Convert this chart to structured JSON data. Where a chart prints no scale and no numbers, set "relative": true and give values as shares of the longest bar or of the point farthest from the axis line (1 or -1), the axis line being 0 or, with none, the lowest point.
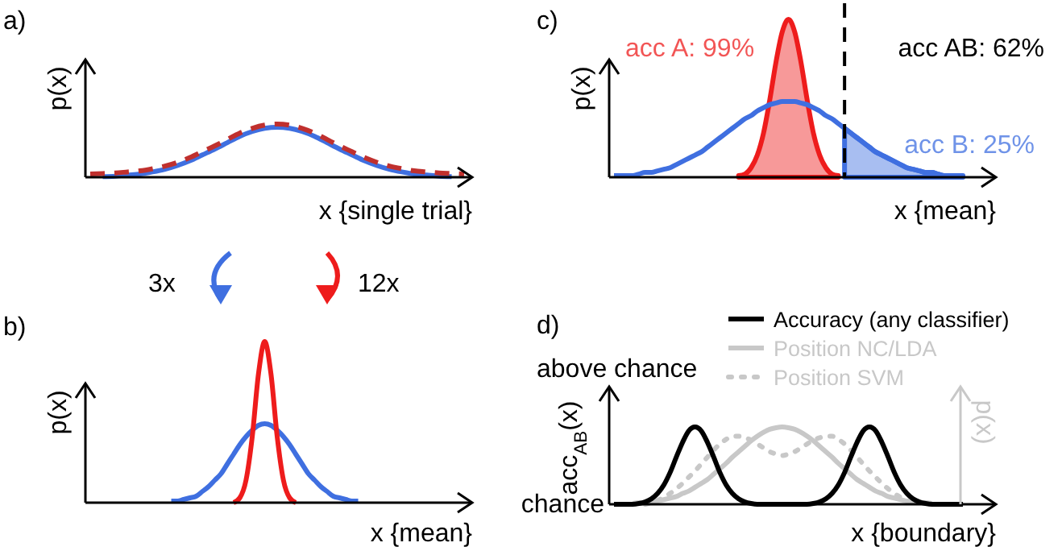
{
  "chart_data": [
    {
      "type": "line",
      "title": "a)",
      "xlabel": "x {single trial}",
      "ylabel": "p(x)",
      "relative": true,
      "categories": [
        null,
        null,
        null,
        null,
        null,
        null,
        null,
        null,
        null,
        null,
        null,
        null,
        null,
        null,
        null,
        null,
        null,
        null,
        null,
        null,
        null,
        null,
        null,
        null,
        null,
        null,
        null,
        null,
        null,
        null,
        null
      ],
      "series": [
        {
          "color": "#3f6fe0",
          "values": [
            null,
            0.01,
            0.02,
            0.04,
            0.06,
            0.1,
            0.15,
            0.22,
            0.31,
            0.42,
            0.53,
            0.65,
            0.77,
            0.86,
            0.92,
            0.94,
            0.92,
            0.86,
            0.77,
            0.65,
            0.53,
            0.42,
            0.31,
            0.22,
            0.15,
            0.1,
            0.06,
            0.04,
            0.02,
            0.01,
            null
          ]
        },
        {
          "color": "#c0302e",
          "line_style": "dashed",
          "values": [
            0.06,
            0.07,
            0.08,
            0.1,
            0.12,
            0.16,
            0.21,
            0.28,
            0.37,
            0.48,
            0.59,
            0.71,
            0.83,
            0.92,
            0.98,
            1,
            0.98,
            0.92,
            0.83,
            0.71,
            0.59,
            0.48,
            0.37,
            0.28,
            0.21,
            0.16,
            0.12,
            0.1,
            0.08,
            0.07,
            0.06
          ]
        }
      ]
    },
    {
      "type": "line",
      "title": "b)",
      "xlabel": "x {mean}",
      "ylabel": "p(x)",
      "relative": true,
      "annotations": [
        "3x",
        "12x"
      ],
      "categories": [
        null,
        null,
        null,
        null,
        null,
        null,
        null,
        null,
        null,
        null,
        null,
        null,
        null,
        null,
        null,
        null,
        null,
        null,
        null,
        null,
        null,
        null,
        null,
        null,
        null,
        null,
        null,
        null,
        null,
        null,
        null,
        null,
        null,
        null,
        null,
        null,
        null,
        null,
        null,
        null,
        null,
        null,
        null,
        null,
        null,
        null,
        null,
        null,
        null,
        null,
        null,
        null,
        null,
        null,
        null,
        null,
        null,
        null,
        null,
        null,
        null
      ],
      "series": [
        {
          "color": "#3f6fe0",
          "values": [
            null,
            null,
            null,
            null,
            null,
            null,
            null,
            null,
            null,
            null,
            null,
            null,
            null,
            0.01,
            0.01,
            0.02,
            0.03,
            0.04,
            0.07,
            0.1,
            0.14,
            0.18,
            0.24,
            0.3,
            0.36,
            0.41,
            0.45,
            0.48,
            0.49,
            0.48,
            0.45,
            0.41,
            0.36,
            0.3,
            0.24,
            0.18,
            0.14,
            0.1,
            0.07,
            0.04,
            0.03,
            0.02,
            0.01,
            0.01,
            null,
            null,
            null,
            null,
            null,
            null,
            null,
            null,
            null,
            null,
            null,
            null,
            null,
            null,
            null,
            null,
            null
          ]
        },
        {
          "color": "#ee1c1c",
          "values": [
            null,
            null,
            null,
            null,
            null,
            null,
            null,
            null,
            null,
            null,
            null,
            null,
            null,
            null,
            null,
            null,
            null,
            null,
            null,
            null,
            null,
            null,
            null,
            0,
            0.03,
            0.14,
            0.41,
            0.8,
            1,
            0.8,
            0.41,
            0.14,
            0.03,
            0,
            null,
            null,
            null,
            null,
            null,
            null,
            null,
            null,
            null,
            null,
            null,
            null,
            null,
            null,
            null,
            null,
            null,
            null,
            null,
            null,
            null,
            null,
            null,
            null,
            null,
            null,
            null
          ]
        }
      ]
    },
    {
      "type": "line",
      "title": "c)",
      "xlabel": "x {mean}",
      "ylabel": "p(x)",
      "relative": true,
      "annotations": [
        "acc A: 99%",
        "acc AB: 62%",
        "acc B: 25%"
      ],
      "categories": [
        null,
        null,
        null,
        null,
        null,
        null,
        null,
        null,
        null,
        null,
        null,
        null,
        null,
        null,
        null,
        null,
        null,
        null,
        null,
        null,
        null,
        null,
        null,
        null,
        null,
        null,
        null,
        null,
        null,
        null,
        null,
        null,
        null,
        null,
        null,
        null,
        null,
        null,
        null,
        null,
        null,
        null,
        null,
        null,
        null,
        null,
        null,
        null,
        null,
        null,
        null,
        null,
        null,
        null,
        null,
        null,
        null,
        null,
        null,
        null,
        null
      ],
      "series": [
        {
          "type": "area",
          "color": "#ee1c1c",
          "values": [
            null,
            null,
            null,
            null,
            null,
            null,
            null,
            null,
            null,
            null,
            null,
            null,
            null,
            null,
            null,
            null,
            null,
            null,
            null,
            null,
            0.01,
            0.02,
            0.06,
            0.14,
            0.28,
            0.49,
            0.73,
            0.92,
            1,
            0.92,
            0.73,
            0.49,
            0.28,
            0.14,
            0.06,
            0.02,
            0.01,
            null,
            null,
            null,
            null,
            null,
            null,
            null,
            null,
            null,
            null,
            null,
            null,
            null,
            null,
            null,
            null,
            null,
            null,
            null,
            null,
            null,
            null,
            null,
            null
          ]
        },
        {
          "type": "area",
          "color": "#3f6fe0",
          "values": [
            null,
            null,
            null,
            null,
            null,
            null,
            null,
            null,
            null,
            null,
            null,
            null,
            null,
            null,
            null,
            null,
            null,
            null,
            null,
            null,
            null,
            null,
            null,
            null,
            null,
            null,
            null,
            null,
            null,
            null,
            null,
            null,
            null,
            null,
            null,
            null,
            null,
            0.31,
            0.28,
            0.25,
            0.22,
            0.19,
            0.16,
            0.14,
            0.12,
            0.1,
            0.08,
            0.06,
            0.05,
            0.04,
            0.03,
            0.03,
            0.02,
            0.01,
            0.01,
            0.01,
            0.01,
            null,
            null,
            null,
            null
          ]
        },
        {
          "color": "#3f6fe0",
          "values": [
            0.01,
            0.01,
            0.01,
            0.01,
            0.02,
            0.03,
            0.03,
            0.04,
            0.05,
            0.06,
            0.08,
            0.1,
            0.12,
            0.14,
            0.16,
            0.19,
            0.22,
            0.25,
            0.28,
            0.31,
            0.34,
            0.37,
            0.39,
            0.42,
            0.44,
            0.46,
            0.47,
            0.48,
            0.48,
            0.48,
            0.47,
            0.46,
            0.44,
            0.42,
            0.39,
            0.37,
            0.34,
            0.31,
            0.28,
            0.25,
            0.22,
            0.19,
            0.16,
            0.14,
            0.12,
            0.1,
            0.08,
            0.06,
            0.05,
            0.04,
            0.03,
            0.03,
            0.02,
            0.01,
            0.01,
            0.01,
            0.01,
            null,
            null,
            null,
            null
          ]
        }
      ]
    },
    {
      "type": "line",
      "title": "d)",
      "xlabel": "x {boundary}",
      "ylabel": "acc$_{AB}$(x)",
      "y2label": "p(x)",
      "relative": true,
      "legend": "top right",
      "annotations": [
        "above chance",
        "chance"
      ],
      "categories": [
        null,
        null,
        null,
        null,
        null,
        null,
        null,
        null,
        null,
        null,
        null,
        null,
        null,
        null,
        null,
        null,
        null,
        null,
        null,
        null,
        null,
        null,
        null,
        null,
        null,
        null,
        null,
        null,
        null,
        null,
        null,
        null,
        null,
        null,
        null,
        null,
        null,
        null,
        null,
        null,
        null,
        null,
        null,
        null,
        null,
        null,
        null,
        null,
        null,
        null,
        null,
        null,
        null,
        null,
        null,
        null,
        null,
        null,
        null,
        null,
        null
      ],
      "series": [
        {
          "name": "Accuracy (any classifier)",
          "color": "#000000",
          "values": [
            0,
            0,
            0,
            0,
            0.01,
            0.03,
            0.07,
            0.14,
            0.25,
            0.41,
            0.61,
            0.8,
            0.95,
            1,
            0.95,
            0.8,
            0.61,
            0.41,
            0.25,
            0.14,
            0.07,
            0.03,
            0.01,
            0,
            0,
            0,
            0,
            0,
            0,
            0,
            0,
            0,
            0.01,
            0.03,
            0.07,
            0.14,
            0.25,
            0.41,
            0.61,
            0.8,
            0.95,
            1,
            0.95,
            0.8,
            0.61,
            0.41,
            0.25,
            0.14,
            0.07,
            0.03,
            0.01,
            0,
            0,
            0,
            0,
            0,
            0,
            null,
            null,
            null,
            null
          ]
        },
        {
          "name": "Position NC/LDA",
          "color": "#c8c8c8",
          "values": [
            null,
            null,
            null,
            0.01,
            0.02,
            0.02,
            0.03,
            0.04,
            0.06,
            0.08,
            0.1,
            0.14,
            0.17,
            0.22,
            0.27,
            0.32,
            0.39,
            0.46,
            0.53,
            0.61,
            0.68,
            0.75,
            0.82,
            0.88,
            0.93,
            0.97,
            0.99,
            1,
            0.99,
            0.97,
            0.93,
            0.88,
            0.82,
            0.75,
            0.68,
            0.61,
            0.53,
            0.46,
            0.39,
            0.32,
            0.27,
            0.22,
            0.17,
            0.14,
            0.1,
            0.08,
            0.06,
            0.04,
            0.03,
            0.02,
            0.02,
            0.01,
            null,
            null,
            null,
            null,
            null,
            null,
            null,
            null,
            null
          ]
        },
        {
          "name": "Position SVM",
          "color": "#c8c8c8",
          "line_style": "dotted",
          "values": [
            null,
            null,
            null,
            null,
            null,
            0,
            0.02,
            0.05,
            0.09,
            0.14,
            0.2,
            0.27,
            0.35,
            0.43,
            0.52,
            0.61,
            0.7,
            0.78,
            0.84,
            0.88,
            0.88,
            0.86,
            0.83,
            0.78,
            0.73,
            0.68,
            0.65,
            0.63,
            0.65,
            0.68,
            0.73,
            0.78,
            0.83,
            0.86,
            0.88,
            0.88,
            0.84,
            0.78,
            0.7,
            0.61,
            0.52,
            0.43,
            0.35,
            0.27,
            0.2,
            0.14,
            0.09,
            0.05,
            0.02,
            0,
            null,
            null,
            null,
            null,
            null,
            null,
            null,
            null,
            null,
            null,
            null
          ]
        }
      ]
    }
  ]
}
